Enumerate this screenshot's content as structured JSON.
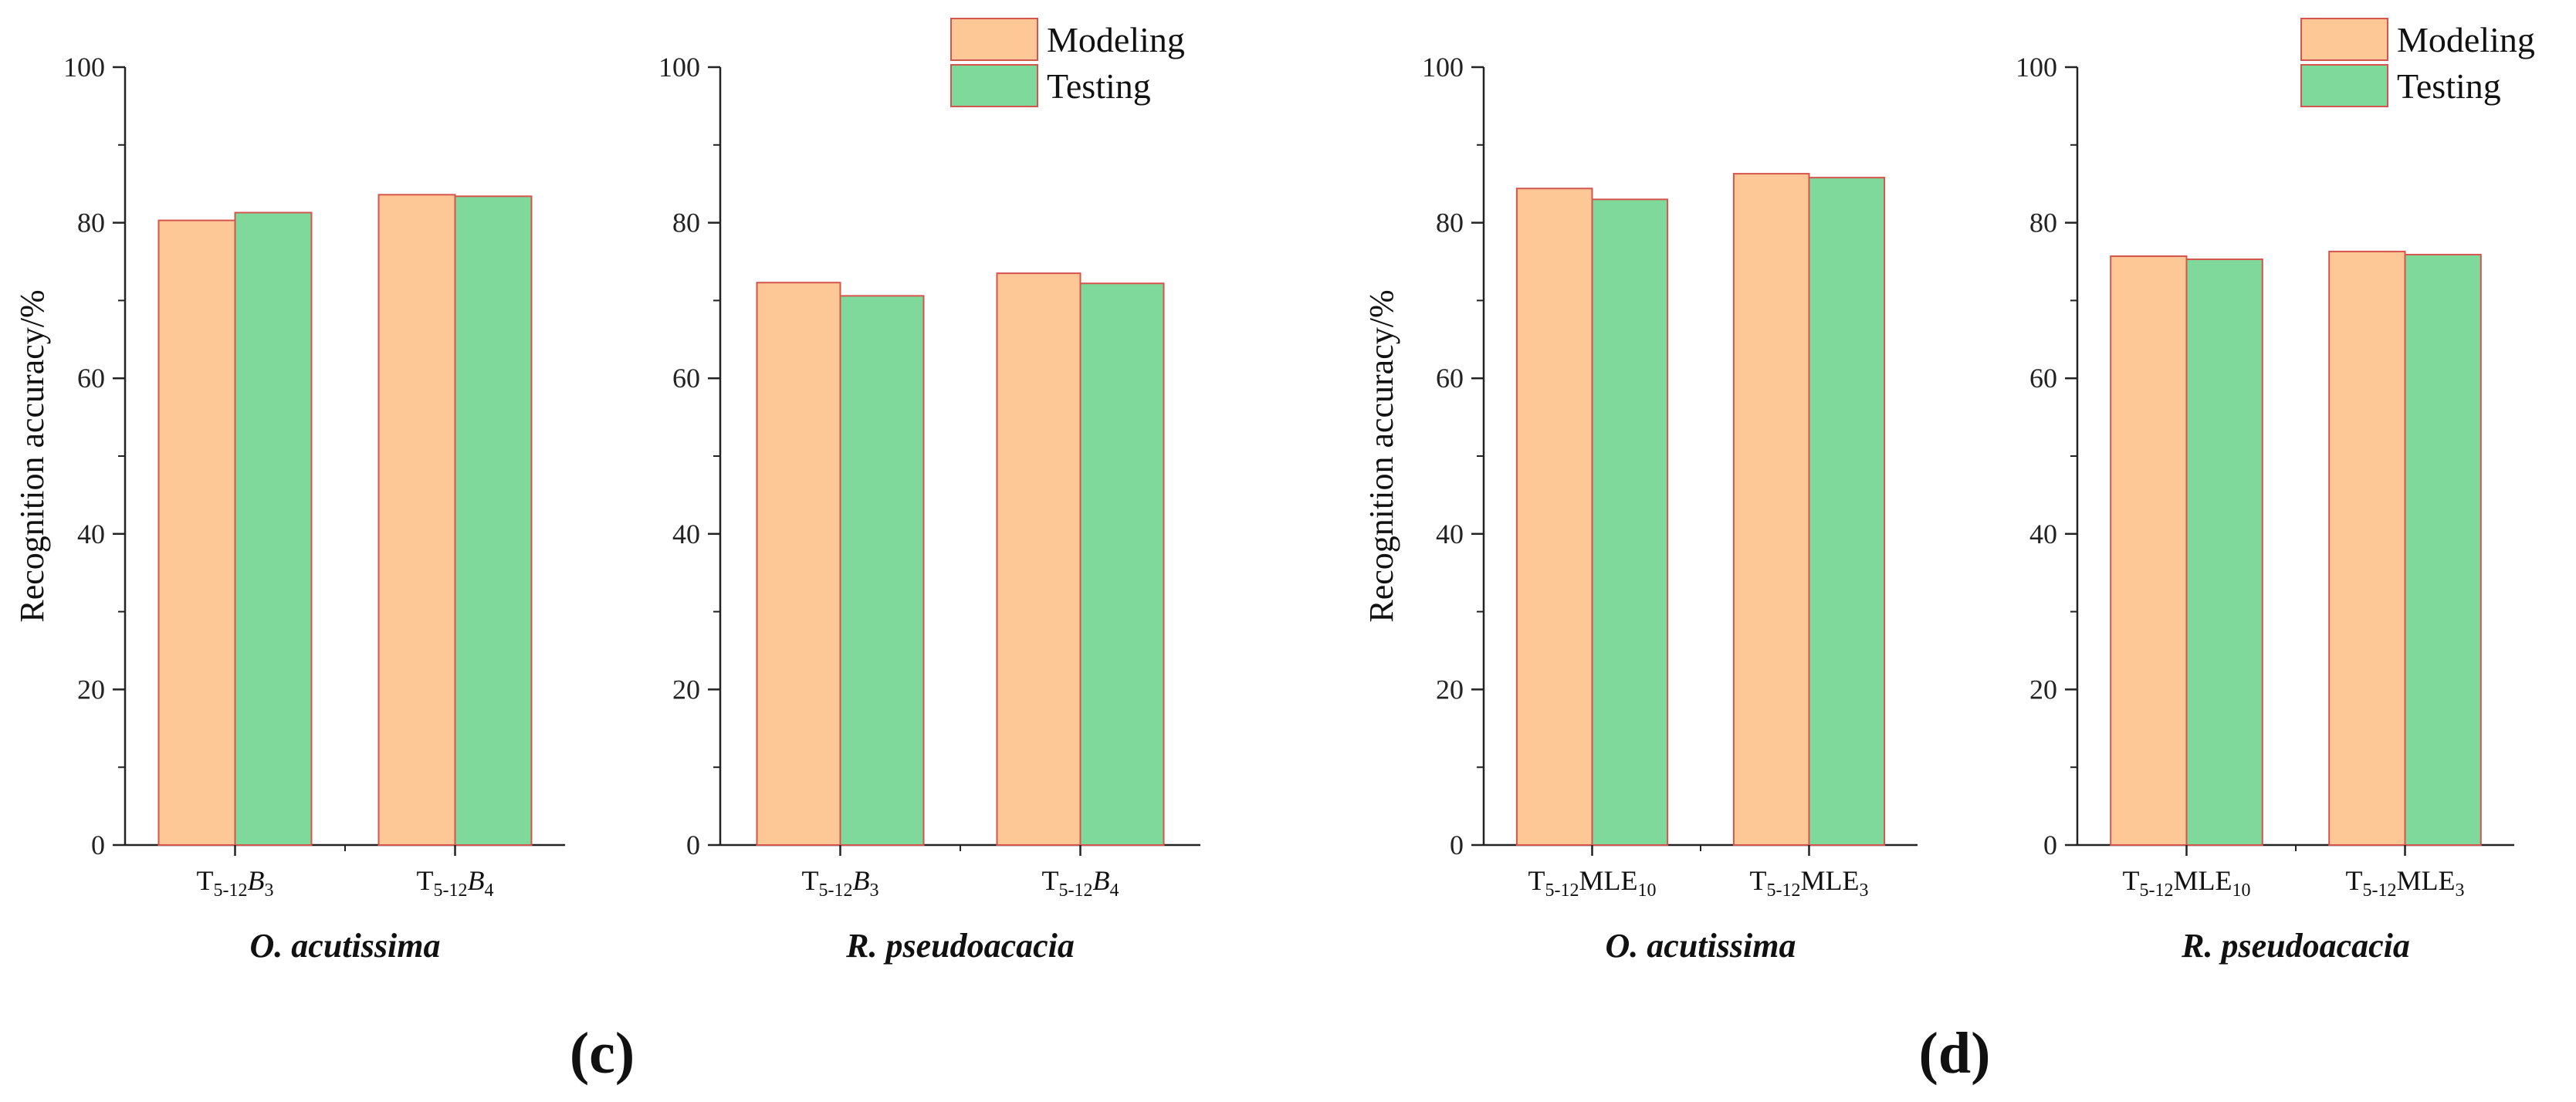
{
  "colors": {
    "modeling": "#FEC896",
    "testing": "#7FD99A",
    "bar_edge": "#D6544E",
    "axis": "#222222"
  },
  "legend": {
    "modeling": "Modeling",
    "testing": "Testing"
  },
  "panel_labels": [
    "(c)",
    "(d)"
  ],
  "chart_data": [
    {
      "type": "bar",
      "panel": "(c)",
      "title": "O. acutissima",
      "ylabel": "Recognition accuracy/%",
      "ylim": [
        0,
        100
      ],
      "yticks": [
        0,
        20,
        40,
        60,
        80,
        100
      ],
      "categories": [
        "T5-12B3",
        "T5-12B4"
      ],
      "category_labels": [
        {
          "main": "T",
          "sub": "5-12",
          "tail": "B",
          "tail_italic": true,
          "tail_sub": "3"
        },
        {
          "main": "T",
          "sub": "5-12",
          "tail": "B",
          "tail_italic": true,
          "tail_sub": "4"
        }
      ],
      "series": [
        {
          "name": "Modeling",
          "values": [
            80.3,
            83.6
          ]
        },
        {
          "name": "Testing",
          "values": [
            81.3,
            83.4
          ]
        }
      ],
      "legend": false
    },
    {
      "type": "bar",
      "panel": "(c)",
      "title": "R. pseudoacacia",
      "ylabel": "",
      "ylim": [
        0,
        100
      ],
      "yticks": [
        0,
        20,
        40,
        60,
        80,
        100
      ],
      "categories": [
        "T5-12B3",
        "T5-12B4"
      ],
      "category_labels": [
        {
          "main": "T",
          "sub": "5-12",
          "tail": "B",
          "tail_italic": true,
          "tail_sub": "3"
        },
        {
          "main": "T",
          "sub": "5-12",
          "tail": "B",
          "tail_italic": true,
          "tail_sub": "4"
        }
      ],
      "series": [
        {
          "name": "Modeling",
          "values": [
            72.3,
            73.5
          ]
        },
        {
          "name": "Testing",
          "values": [
            70.6,
            72.2
          ]
        }
      ],
      "legend": true,
      "legend_position": "top-right"
    },
    {
      "type": "bar",
      "panel": "(d)",
      "title": "O. acutissima",
      "ylabel": "Recognition accuracy/%",
      "ylim": [
        0,
        100
      ],
      "yticks": [
        0,
        20,
        40,
        60,
        80,
        100
      ],
      "categories": [
        "T5-12MLE10",
        "T5-12MLE3"
      ],
      "category_labels": [
        {
          "main": "T",
          "sub": "5-12",
          "tail": "MLE",
          "tail_italic": false,
          "tail_sub": "10"
        },
        {
          "main": "T",
          "sub": "5-12",
          "tail": "MLE",
          "tail_italic": false,
          "tail_sub": "3"
        }
      ],
      "series": [
        {
          "name": "Modeling",
          "values": [
            84.4,
            86.3
          ]
        },
        {
          "name": "Testing",
          "values": [
            83.0,
            85.8
          ]
        }
      ],
      "legend": false
    },
    {
      "type": "bar",
      "panel": "(d)",
      "title": "R. pseudoacacia",
      "ylabel": "",
      "ylim": [
        0,
        100
      ],
      "yticks": [
        0,
        20,
        40,
        60,
        80,
        100
      ],
      "categories": [
        "T5-12MLE10",
        "T5-12MLE3"
      ],
      "category_labels": [
        {
          "main": "T",
          "sub": "5-12",
          "tail": "MLE",
          "tail_italic": false,
          "tail_sub": "10"
        },
        {
          "main": "T",
          "sub": "5-12",
          "tail": "MLE",
          "tail_italic": false,
          "tail_sub": "3"
        }
      ],
      "series": [
        {
          "name": "Modeling",
          "values": [
            75.7,
            76.3
          ]
        },
        {
          "name": "Testing",
          "values": [
            75.3,
            75.9
          ]
        }
      ],
      "legend": true,
      "legend_position": "top-right"
    }
  ]
}
